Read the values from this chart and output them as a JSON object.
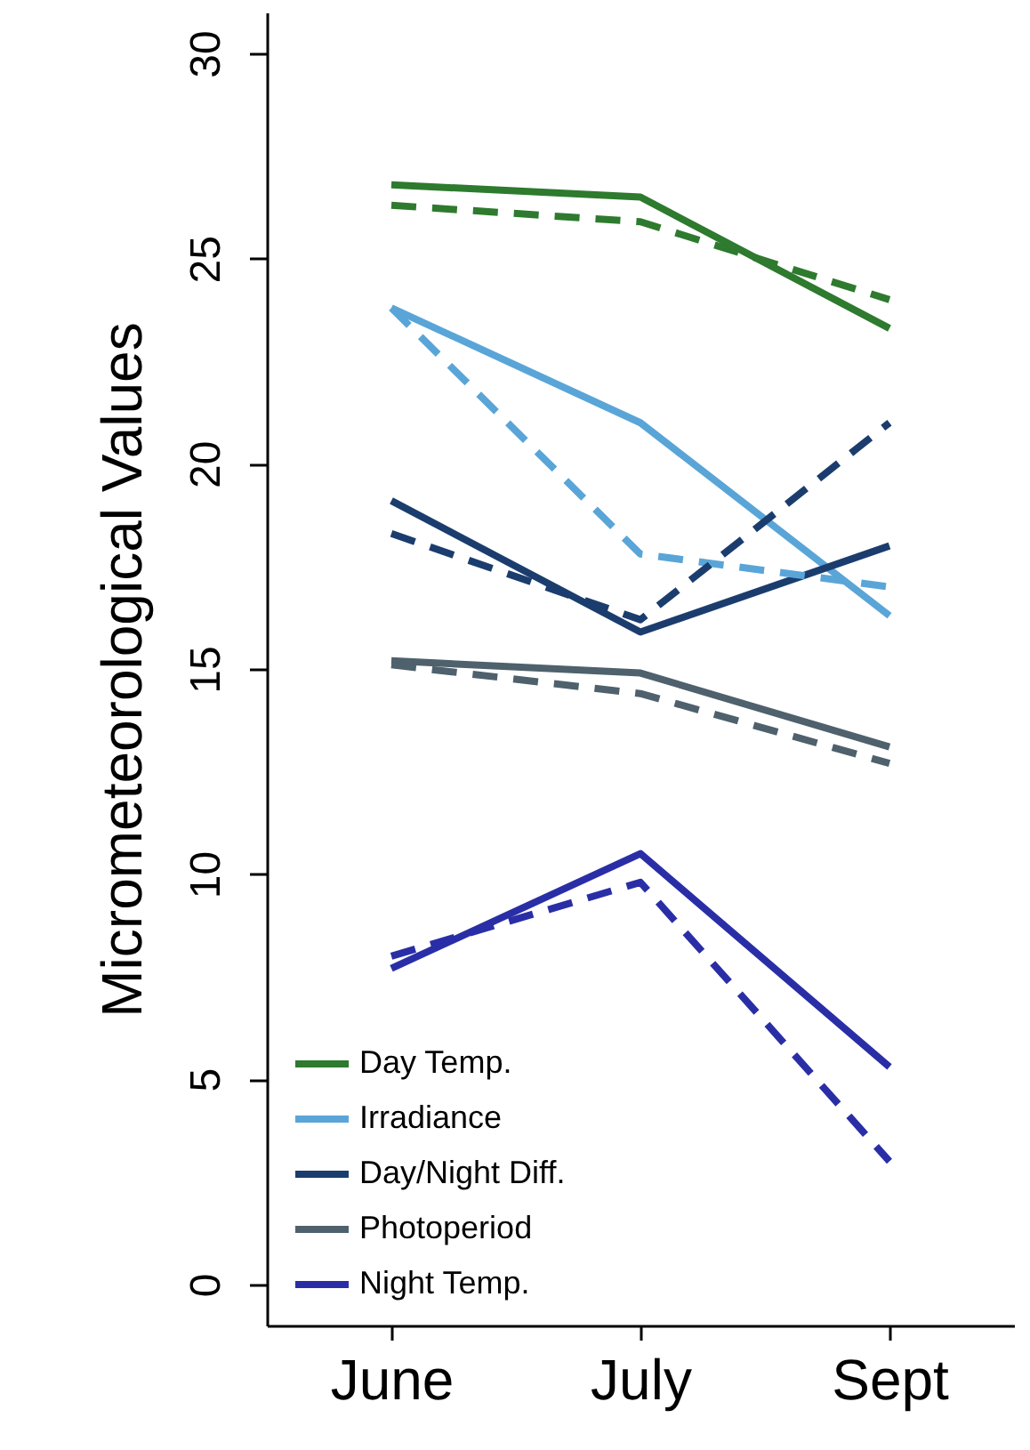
{
  "chart_data": {
    "type": "line",
    "ylabel": "Micrometeorological Values",
    "categories": [
      "June",
      "July",
      "Sept"
    ],
    "series": [
      {
        "name": "Day Temp.",
        "color": "#2e7a2e",
        "line_style": "solid",
        "values": [
          26.8,
          26.5,
          23.3
        ]
      },
      {
        "name": "Irradiance",
        "color": "#5aa5d8",
        "line_style": "solid",
        "values": [
          23.8,
          21.0,
          16.3
        ]
      },
      {
        "name": "Day/Night Diff.",
        "color": "#1b3d6e",
        "line_style": "solid",
        "values": [
          19.1,
          15.9,
          18.0
        ]
      },
      {
        "name": "Photoperiod",
        "color": "#4e616c",
        "line_style": "solid",
        "values": [
          15.2,
          14.9,
          13.1
        ]
      },
      {
        "name": "Night Temp.",
        "color": "#2a2ea6",
        "line_style": "solid",
        "values": [
          7.7,
          10.5,
          5.3
        ]
      },
      {
        "color": "#2e7a2e",
        "line_style": "dashed",
        "values": [
          26.3,
          25.9,
          24.0
        ]
      },
      {
        "color": "#5aa5d8",
        "line_style": "dashed",
        "values": [
          23.8,
          17.8,
          17.0
        ]
      },
      {
        "color": "#1b3d6e",
        "line_style": "dashed",
        "values": [
          18.3,
          16.2,
          21.0
        ]
      },
      {
        "color": "#4e616c",
        "line_style": "dashed",
        "values": [
          15.1,
          14.4,
          12.7
        ]
      },
      {
        "color": "#2a2ea6",
        "line_style": "dashed",
        "values": [
          8.0,
          9.8,
          3.0
        ]
      }
    ],
    "ylim": [
      -1,
      31
    ],
    "yticks": [
      0,
      5,
      10,
      15,
      20,
      25,
      30
    ],
    "grid": false,
    "legend": "bottom left"
  }
}
